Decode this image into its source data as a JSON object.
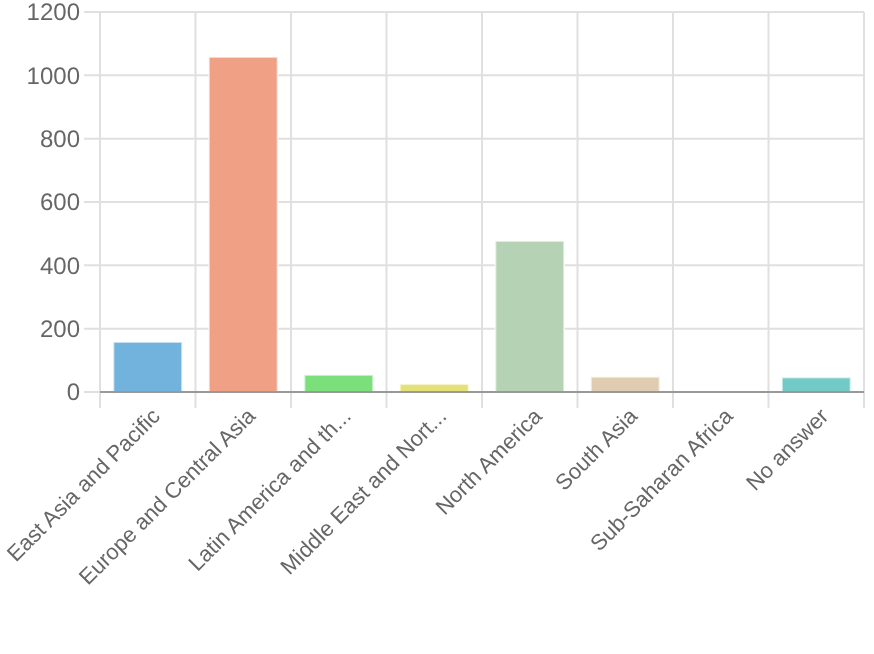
{
  "chart_data": {
    "type": "bar",
    "categories": [
      "East Asia and Pacific",
      "Europe and Central Asia",
      "Latin America and th...",
      "Middle East and Nort...",
      "North America",
      "South Asia",
      "Sub-Saharan Africa",
      "No answer"
    ],
    "values": [
      158,
      1058,
      54,
      25,
      477,
      48,
      0,
      46
    ],
    "colors": [
      "#72b3de",
      "#f0a084",
      "#7be07b",
      "#e3e177",
      "#b6d2b4",
      "#e0cdb1",
      "#d89ad8",
      "#72c9c8"
    ],
    "ylim": [
      0,
      1200
    ],
    "yticks": [
      0,
      200,
      400,
      600,
      800,
      1000,
      1200
    ],
    "grid": true
  }
}
